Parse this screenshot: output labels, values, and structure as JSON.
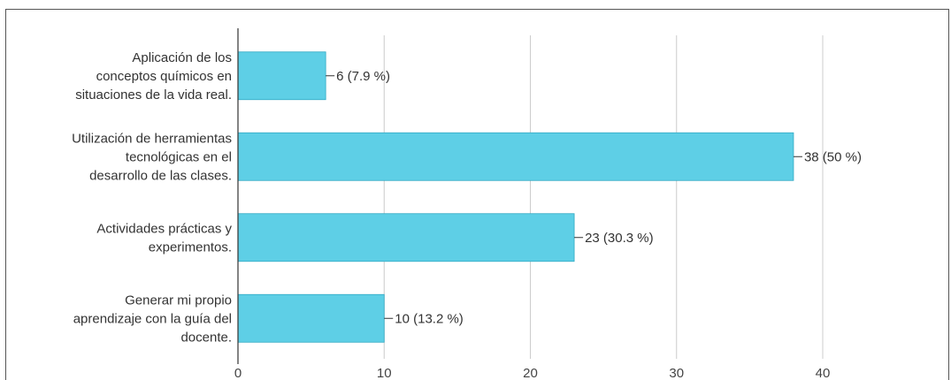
{
  "chart_data": {
    "type": "bar",
    "orientation": "horizontal",
    "categories": [
      [
        "Aplicación de los",
        "conceptos químicos en",
        "situaciones de la vida real."
      ],
      [
        "Utilización de herramientas",
        "tecnológicas en el",
        "desarrollo de las clases."
      ],
      [
        "Actividades prácticas y",
        "experimentos."
      ],
      [
        "Generar mi propio",
        "aprendizaje con la guía del",
        "docente."
      ]
    ],
    "values": [
      6,
      38,
      23,
      10
    ],
    "data_labels": [
      "6 (7.9 %)",
      "38 (50 %)",
      "23 (30.3 %)",
      "10 (13.2 %)"
    ],
    "xlim": [
      0,
      40
    ],
    "xticks": [
      0,
      10,
      20,
      30,
      40
    ],
    "grid": true,
    "bar_color": "#5ecfe6",
    "title": "",
    "xlabel": "",
    "ylabel": ""
  }
}
